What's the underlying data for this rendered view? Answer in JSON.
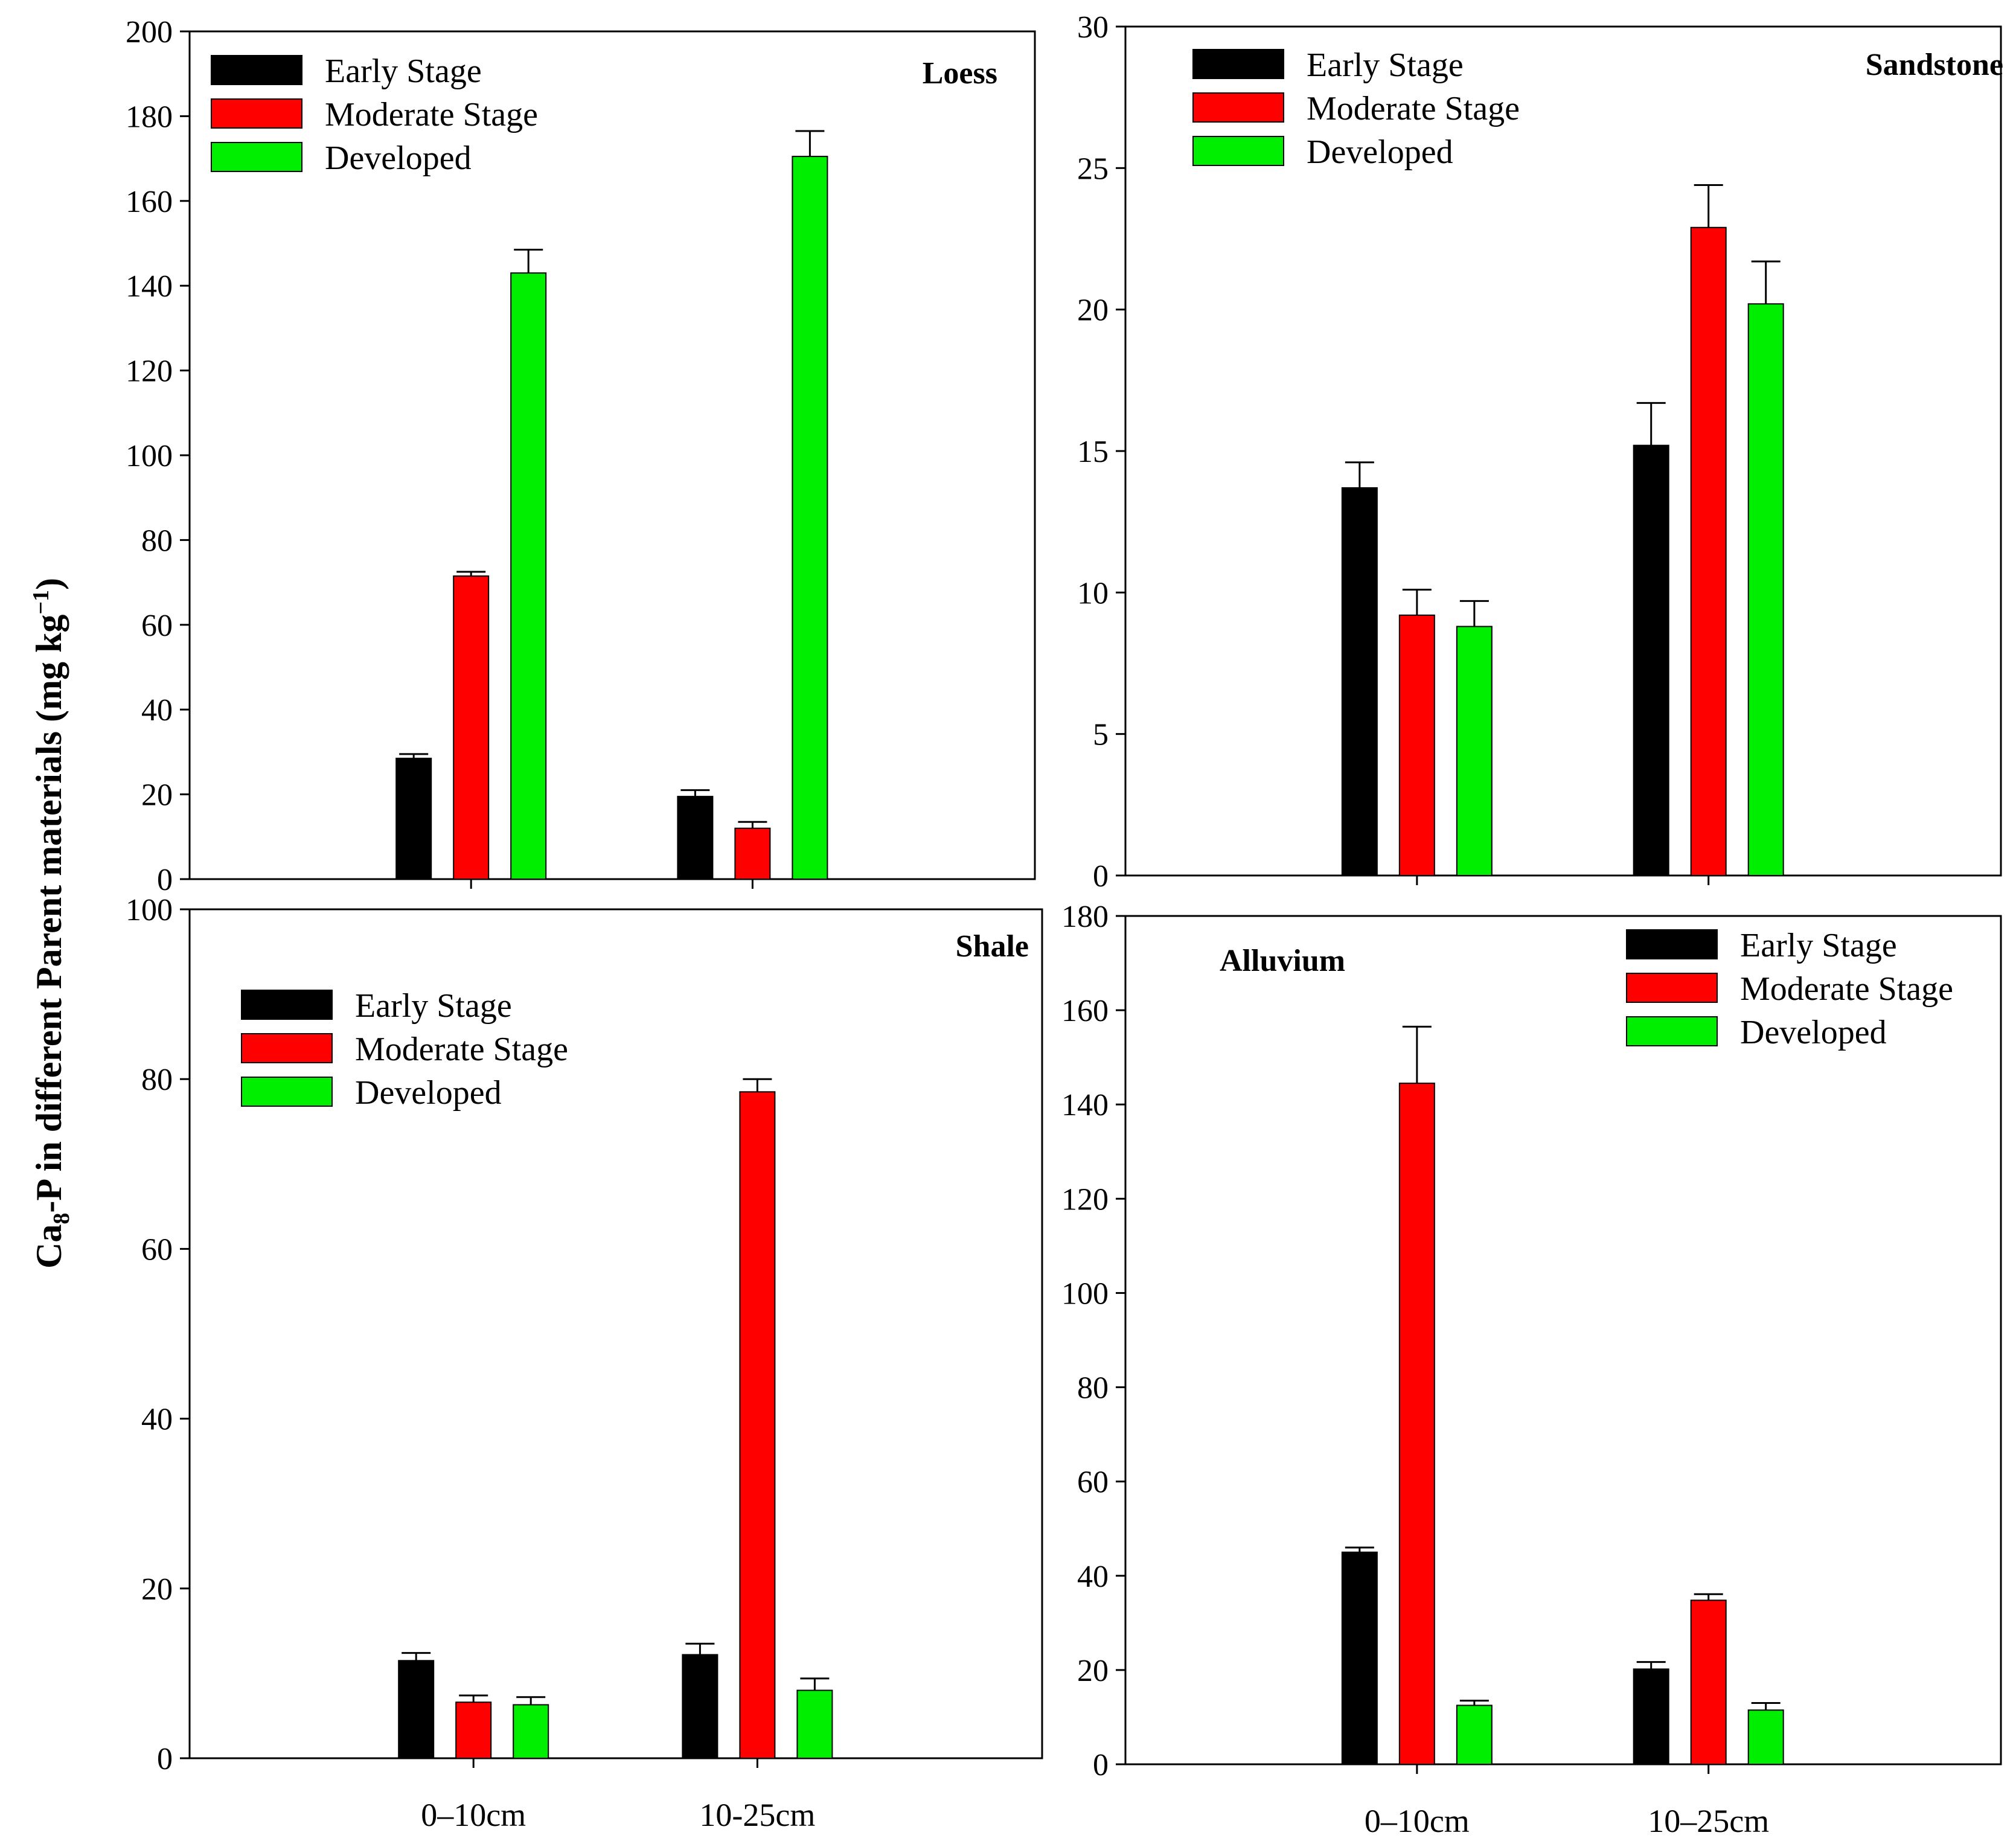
{
  "y_axis_label": {
    "prefix": "Ca",
    "subscript": "8",
    "middle": "-P in different Parent materials (mg kg",
    "superscript": "−1",
    "suffix": ")"
  },
  "colors": {
    "Early Stage": "#000000",
    "Moderate Stage": "#ff0000",
    "Developed": "#00ee00"
  },
  "chart_data": [
    {
      "type": "bar",
      "title": "Loess",
      "categories": [
        "0–10cm",
        "10-25cm"
      ],
      "show_category_labels": false,
      "ylim": [
        0,
        200
      ],
      "yticks": [
        0,
        20,
        40,
        60,
        80,
        100,
        120,
        140,
        160,
        180,
        200
      ],
      "legend_position": "top-left",
      "title_position": "top-right",
      "series": [
        {
          "name": "Early Stage",
          "values": [
            28.5,
            19.5
          ],
          "errors": [
            1.0,
            1.5
          ]
        },
        {
          "name": "Moderate Stage",
          "values": [
            71.5,
            12
          ],
          "errors": [
            1.0,
            1.5
          ]
        },
        {
          "name": "Developed",
          "values": [
            143,
            170.5
          ],
          "errors": [
            5.5,
            6.0
          ]
        }
      ]
    },
    {
      "type": "bar",
      "title": "Sandstone",
      "categories": [
        "0–10cm",
        "10-25cm"
      ],
      "show_category_labels": false,
      "ylim": [
        0,
        30
      ],
      "yticks": [
        0,
        5,
        10,
        15,
        20,
        25,
        30
      ],
      "legend_position": "top-left",
      "title_position": "top-right",
      "series": [
        {
          "name": "Early Stage",
          "values": [
            13.7,
            15.2
          ],
          "errors": [
            0.9,
            1.5
          ]
        },
        {
          "name": "Moderate Stage",
          "values": [
            9.2,
            22.9
          ],
          "errors": [
            0.9,
            1.5
          ]
        },
        {
          "name": "Developed",
          "values": [
            8.8,
            20.2
          ],
          "errors": [
            0.9,
            1.5
          ]
        }
      ]
    },
    {
      "type": "bar",
      "title": "Shale",
      "categories": [
        "0–10cm",
        "10-25cm"
      ],
      "show_category_labels": true,
      "ylim": [
        0,
        100
      ],
      "yticks": [
        0,
        20,
        40,
        60,
        80,
        100
      ],
      "legend_position": "top-left",
      "title_position": "top-right",
      "series": [
        {
          "name": "Early Stage",
          "values": [
            11.5,
            12.2
          ],
          "errors": [
            0.9,
            1.3
          ]
        },
        {
          "name": "Moderate Stage",
          "values": [
            6.6,
            78.5
          ],
          "errors": [
            0.8,
            1.5
          ]
        },
        {
          "name": "Developed",
          "values": [
            6.3,
            8.0
          ],
          "errors": [
            0.9,
            1.4
          ]
        }
      ]
    },
    {
      "type": "bar",
      "title": "Alluvium",
      "categories": [
        "0–10cm",
        "10–25cm"
      ],
      "show_category_labels": true,
      "ylim": [
        0,
        180
      ],
      "yticks": [
        0,
        20,
        40,
        60,
        80,
        100,
        120,
        140,
        160,
        180
      ],
      "legend_position": "top-right",
      "title_position": "top-left",
      "series": [
        {
          "name": "Early Stage",
          "values": [
            45,
            20.2
          ],
          "errors": [
            1.0,
            1.5
          ]
        },
        {
          "name": "Moderate Stage",
          "values": [
            144.5,
            34.8
          ],
          "errors": [
            12,
            1.3
          ]
        },
        {
          "name": "Developed",
          "values": [
            12.5,
            11.5
          ],
          "errors": [
            1.0,
            1.5
          ]
        }
      ]
    }
  ]
}
